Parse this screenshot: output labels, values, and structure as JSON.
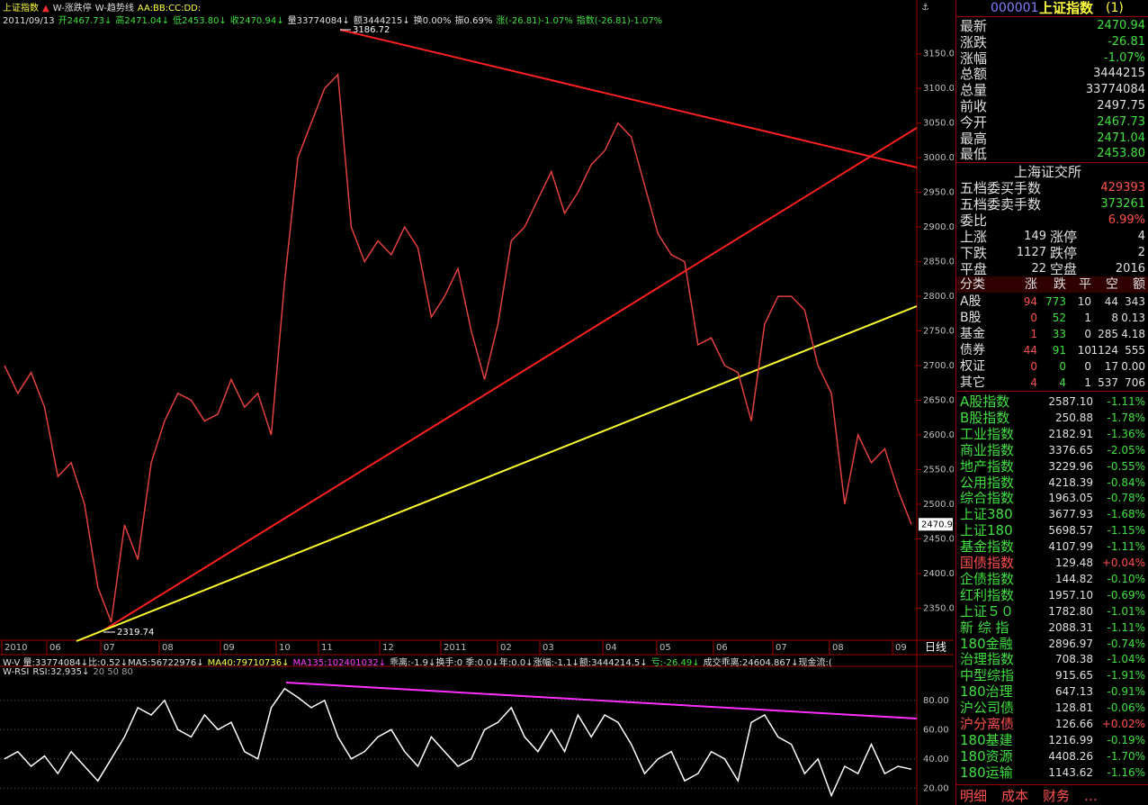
{
  "header": {
    "title": "上证指数",
    "tools": [
      "W-涨跌停",
      "W-趋势线"
    ],
    "labels": "AA:BB:CC:DD:"
  },
  "quote_line": [
    {
      "text": "2011/09/13",
      "color": "#e0e0e0"
    },
    {
      "text": "开2467.73↓",
      "color": "#40e040"
    },
    {
      "text": "高2471.04↓",
      "color": "#40e040"
    },
    {
      "text": "低2453.80↓",
      "color": "#40e040"
    },
    {
      "text": "收2470.94↓",
      "color": "#40e040"
    },
    {
      "text": "量33774084↓",
      "color": "#e0e0e0"
    },
    {
      "text": "额3444215↓",
      "color": "#e0e0e0"
    },
    {
      "text": "换0.00%",
      "color": "#e0e0e0"
    },
    {
      "text": "振0.69%",
      "color": "#e0e0e0"
    },
    {
      "text": "涨(-26.81)-1.07%",
      "color": "#40e040"
    },
    {
      "text": "指数(-26.81)-1.07%",
      "color": "#40e040"
    }
  ],
  "indicator_line": [
    {
      "text": "W-V 量:33774084↓比:0.52↓MA5:56722976↓",
      "color": "#e0e0e0"
    },
    {
      "text": "MA40:79710736↓",
      "color": "#ffff40"
    },
    {
      "text": "MA135:102401032↓",
      "color": "#ff40ff"
    },
    {
      "text": "乖离:-1.9↓换手:0 季:0.0↓年:0.0↓涨幅:-1.1↓额:3444214.5↓",
      "color": "#e0e0e0"
    },
    {
      "text": "亏:-26.49↓",
      "color": "#40e040"
    },
    {
      "text": "成交乖离:24604.867↓现金流:(",
      "color": "#e0e0e0"
    }
  ],
  "chart_data": [
    {
      "type": "line",
      "series": [
        {
          "name": "上证指数",
          "color": "#e04040",
          "values": [
            2700,
            2660,
            2690,
            2640,
            2540,
            2560,
            2500,
            2380,
            2330,
            2470,
            2420,
            2560,
            2620,
            2660,
            2650,
            2620,
            2630,
            2680,
            2640,
            2660,
            2600,
            2820,
            3000,
            3050,
            3100,
            3120,
            2900,
            2850,
            2880,
            2860,
            2900,
            2870,
            2770,
            2800,
            2840,
            2750,
            2680,
            2760,
            2880,
            2900,
            2940,
            2980,
            2920,
            2950,
            2990,
            3010,
            3050,
            3030,
            2960,
            2890,
            2860,
            2850,
            2730,
            2740,
            2700,
            2690,
            2620,
            2760,
            2800,
            2800,
            2780,
            2700,
            2660,
            2500,
            2600,
            2560,
            2580,
            2520,
            2470.94
          ]
        }
      ],
      "ylim": [
        2305,
        3212
      ],
      "yticks": [
        {
          "value": 2350,
          "label": "2350.0"
        },
        {
          "value": 2400,
          "label": "2400.0"
        },
        {
          "value": 2450,
          "label": "2450.0"
        },
        {
          "value": 2500,
          "label": "2500.0"
        },
        {
          "value": 2550,
          "label": "2550.0"
        },
        {
          "value": 2600,
          "label": "2600.0"
        },
        {
          "value": 2650,
          "label": "2650.0"
        },
        {
          "value": 2700,
          "label": "2700.0"
        },
        {
          "value": 2750,
          "label": "2750.0"
        },
        {
          "value": 2800,
          "label": "2800.0"
        },
        {
          "value": 2850,
          "label": "2850.0"
        },
        {
          "value": 2900,
          "label": "2900.0"
        },
        {
          "value": 2950,
          "label": "2950.0"
        },
        {
          "value": 3000,
          "label": "3000.0"
        },
        {
          "value": 3050,
          "label": "3050.0"
        },
        {
          "value": 3100,
          "label": "3100.0"
        },
        {
          "value": 3150,
          "label": "3150.0"
        }
      ],
      "x_labels": [
        "2010",
        "06",
        "07",
        "08",
        "09",
        "10",
        "11",
        "12",
        "2011",
        "02",
        "03",
        "04",
        "05",
        "06",
        "07",
        "08",
        "09"
      ],
      "period": "日线",
      "last_price_label": "2470.9",
      "annotations": [
        {
          "text": "3186.72"
        },
        {
          "text": "2319.74"
        }
      ]
    },
    {
      "type": "line",
      "name": "W-RSI",
      "label": "RSI:32.935↓",
      "levels_label": "20 50 80",
      "series": [
        {
          "name": "RSI",
          "color": "#ffffff",
          "values": [
            40,
            45,
            35,
            42,
            30,
            45,
            35,
            25,
            40,
            55,
            75,
            70,
            80,
            60,
            55,
            70,
            60,
            65,
            45,
            40,
            75,
            88,
            82,
            75,
            80,
            55,
            40,
            45,
            55,
            60,
            45,
            35,
            55,
            45,
            35,
            40,
            60,
            65,
            75,
            55,
            45,
            60,
            45,
            70,
            55,
            70,
            65,
            50,
            30,
            40,
            45,
            25,
            30,
            45,
            40,
            25,
            65,
            70,
            55,
            50,
            30,
            40,
            15,
            35,
            30,
            50,
            30,
            35,
            32.935
          ]
        }
      ],
      "ylim": [
        11,
        94
      ],
      "yticks": [
        {
          "value": 20,
          "label": "20.00"
        },
        {
          "value": 40,
          "label": "40.00"
        },
        {
          "value": 60,
          "label": "60.00"
        },
        {
          "value": 80,
          "label": "80.00"
        }
      ],
      "grid": true
    }
  ],
  "panel": {
    "code": "000001",
    "name": "上证指数",
    "suffix": "(1)",
    "quote": [
      {
        "label": "最新",
        "value": "2470.94",
        "color": "#40e040"
      },
      {
        "label": "涨跌",
        "value": "-26.81",
        "color": "#40e040"
      },
      {
        "label": "涨幅",
        "value": "-1.07%",
        "color": "#40e040"
      },
      {
        "label": "总额",
        "value": "3444215",
        "color": "#e0e0e0"
      },
      {
        "label": "总量",
        "value": "33774084",
        "color": "#e0e0e0"
      },
      {
        "label": "前收",
        "value": "2497.75",
        "color": "#e0e0e0"
      },
      {
        "label": "今开",
        "value": "2467.73",
        "color": "#40e040"
      },
      {
        "label": "最高",
        "value": "2471.04",
        "color": "#40e040"
      },
      {
        "label": "最低",
        "value": "2453.80",
        "color": "#40e040"
      }
    ],
    "exchange": "上海证交所",
    "orders": [
      {
        "label": "五档委买手数",
        "value": "429393",
        "color": "#ff5050"
      },
      {
        "label": "五档委卖手数",
        "value": "373261",
        "color": "#40e040"
      },
      {
        "label": "委比",
        "value": "6.99%",
        "color": "#ff5050"
      }
    ],
    "stats": [
      [
        "上涨",
        "149",
        "涨停",
        "4"
      ],
      [
        "下跌",
        "1127",
        "跌停",
        "2"
      ],
      [
        "平盘",
        "22",
        "空盘",
        "2016"
      ]
    ],
    "table": {
      "header": [
        "分类",
        "涨",
        "跌",
        "平",
        "空",
        "额"
      ],
      "rows": [
        [
          "A股",
          "94",
          "773",
          "10",
          "44",
          "343"
        ],
        [
          "B股",
          "0",
          "52",
          "1",
          "8",
          "0.13"
        ],
        [
          "基金",
          "1",
          "33",
          "0",
          "285",
          "4.18"
        ],
        [
          "债券",
          "44",
          "91",
          "10",
          "1124",
          "555"
        ],
        [
          "权证",
          "0",
          "0",
          "0",
          "17",
          "0.00"
        ],
        [
          "其它",
          "4",
          "4",
          "1",
          "537",
          "706"
        ]
      ]
    },
    "indices": [
      {
        "name": "A股指数",
        "value": "2587.10",
        "change": "-1.11%",
        "color": "#40e040"
      },
      {
        "name": "B股指数",
        "value": "250.88",
        "change": "-1.78%",
        "color": "#40e040"
      },
      {
        "name": "工业指数",
        "value": "2182.91",
        "change": "-1.36%",
        "color": "#40e040"
      },
      {
        "name": "商业指数",
        "value": "3376.65",
        "change": "-2.05%",
        "color": "#40e040"
      },
      {
        "name": "地产指数",
        "value": "3229.96",
        "change": "-0.55%",
        "color": "#40e040"
      },
      {
        "name": "公用指数",
        "value": "4218.39",
        "change": "-0.84%",
        "color": "#40e040"
      },
      {
        "name": "综合指数",
        "value": "1963.05",
        "change": "-0.78%",
        "color": "#40e040"
      },
      {
        "name": "上证380",
        "value": "3677.93",
        "change": "-1.68%",
        "color": "#40e040"
      },
      {
        "name": "上证180",
        "value": "5698.57",
        "change": "-1.15%",
        "color": "#40e040"
      },
      {
        "name": "基金指数",
        "value": "4107.99",
        "change": "-1.11%",
        "color": "#40e040"
      },
      {
        "name": "国债指数",
        "value": "129.48",
        "change": "+0.04%",
        "color": "#ff5050"
      },
      {
        "name": "企债指数",
        "value": "144.82",
        "change": "-0.10%",
        "color": "#40e040"
      },
      {
        "name": "红利指数",
        "value": "1957.10",
        "change": "-0.69%",
        "color": "#40e040"
      },
      {
        "name": "上证５０",
        "value": "1782.80",
        "change": "-1.01%",
        "color": "#40e040"
      },
      {
        "name": "新 综 指",
        "value": "2088.31",
        "change": "-1.11%",
        "color": "#40e040"
      },
      {
        "name": "180金融",
        "value": "2896.97",
        "change": "-0.74%",
        "color": "#40e040"
      },
      {
        "name": "治理指数",
        "value": "708.38",
        "change": "-1.04%",
        "color": "#40e040"
      },
      {
        "name": "中型综指",
        "value": "915.65",
        "change": "-1.91%",
        "color": "#40e040"
      },
      {
        "name": "180治理",
        "value": "647.13",
        "change": "-0.91%",
        "color": "#40e040"
      },
      {
        "name": "沪公司债",
        "value": "128.81",
        "change": "-0.06%",
        "color": "#40e040"
      },
      {
        "name": "沪分离债",
        "value": "126.66",
        "change": "+0.02%",
        "color": "#ff5050"
      },
      {
        "name": "180基建",
        "value": "1216.99",
        "change": "-0.19%",
        "color": "#40e040"
      },
      {
        "name": "180资源",
        "value": "4408.26",
        "change": "-1.70%",
        "color": "#40e040"
      },
      {
        "name": "180运输",
        "value": "1143.62",
        "change": "-1.16%",
        "color": "#40e040"
      }
    ],
    "tabs": [
      "明细",
      "成本",
      "财务",
      "…"
    ]
  }
}
